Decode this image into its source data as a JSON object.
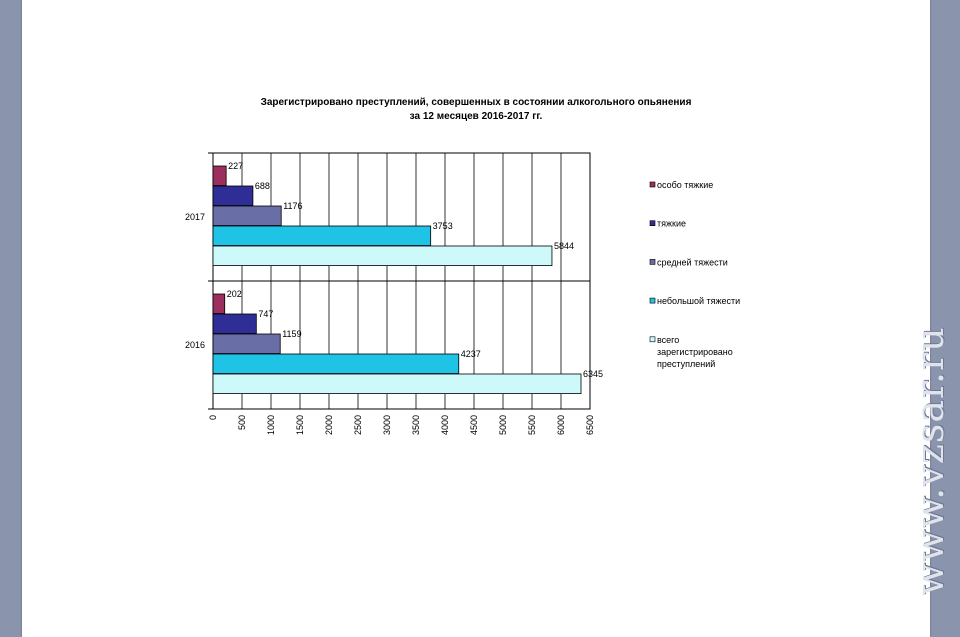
{
  "chart_data": {
    "type": "bar",
    "orientation": "horizontal",
    "title": "Зарегистрировано преступлений, совершенных в состоянии алкогольного опьянения",
    "subtitle": "за 12 месяцев 2016-2017 гг.",
    "categories": [
      "2017",
      "2016"
    ],
    "series": [
      {
        "name": "особо тяжкие",
        "color": "#9b3060",
        "values": [
          227,
          202
        ],
        "labels": [
          "227",
          "202"
        ]
      },
      {
        "name": "тяжкие",
        "color": "#2f2d96",
        "values": [
          688,
          747
        ],
        "labels": [
          "688",
          "747"
        ]
      },
      {
        "name": "средней тяжести",
        "color": "#6a6ea6",
        "values": [
          1176,
          1159
        ],
        "labels": [
          "1176",
          "1159"
        ]
      },
      {
        "name": "небольшой тяжести",
        "color": "#1fc3e5",
        "values": [
          3753,
          4237
        ],
        "labels": [
          "3753",
          "4237"
        ]
      },
      {
        "name": "всего\nзарегистрировано\nпреступлений",
        "color": "#cdf9fb",
        "values": [
          5844,
          6345
        ],
        "labels": [
          "5844",
          "6345"
        ]
      }
    ],
    "xlim": [
      0,
      6500
    ],
    "xticks": [
      "0",
      "500",
      "1000",
      "1500",
      "2000",
      "2500",
      "3000",
      "3500",
      "4000",
      "4500",
      "5000",
      "5500",
      "6000",
      "6500"
    ],
    "grid": true,
    "legend": "right"
  },
  "watermark": "www.vzsar.ru"
}
